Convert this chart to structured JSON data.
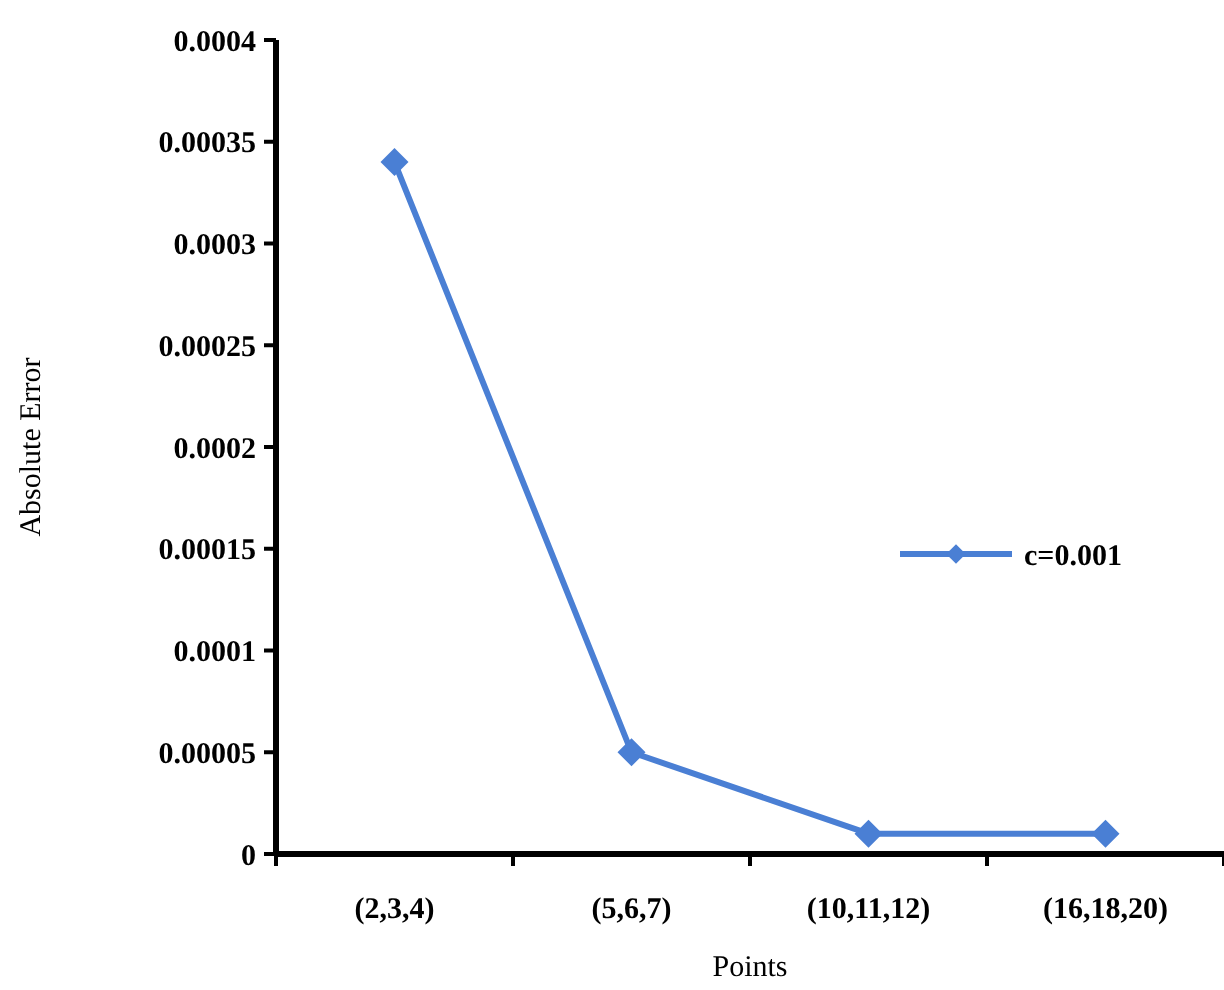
{
  "chart_data": {
    "type": "line",
    "xlabel": "Points",
    "ylabel": "Absolute Error",
    "categories": [
      "(2,3,4)",
      "(5,6,7)",
      "(10,11,12)",
      "(16,18,20)"
    ],
    "series": [
      {
        "name": "c=0.001",
        "color": "#4a7fd4",
        "values": [
          0.00034,
          5e-05,
          1e-05,
          1e-05
        ]
      }
    ],
    "ylim": [
      0,
      0.0004
    ],
    "yticks": [
      0,
      {
        "value": 5e-05,
        "label": "0.00005"
      },
      0.0001,
      0.00015,
      0.0002,
      0.00025,
      0.0003,
      0.00035,
      0.0004
    ],
    "grid": false,
    "legend": "right",
    "marker": "diamond",
    "line_style": "solid"
  }
}
